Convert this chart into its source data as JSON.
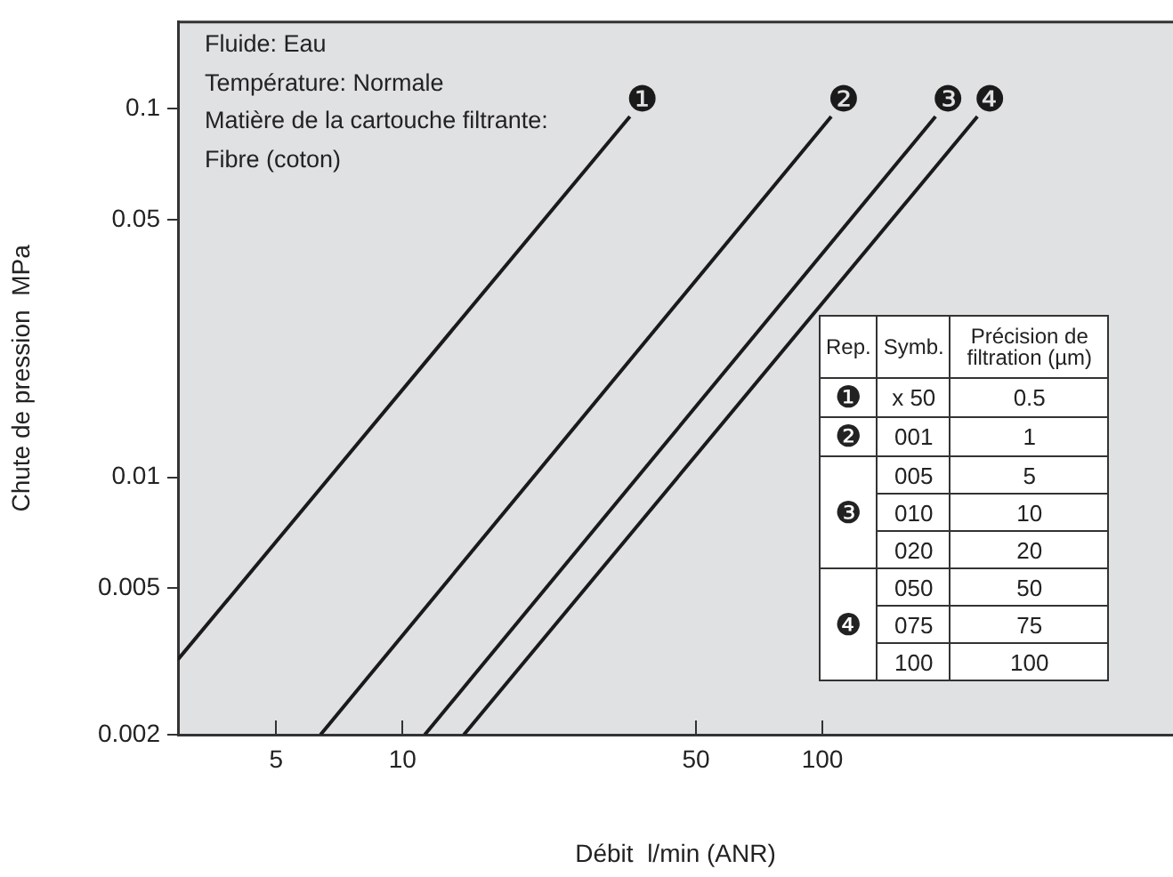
{
  "chart_data": {
    "type": "line",
    "xlabel": "Débit  l/min (ANR)",
    "ylabel": "Chute de pression  MPa",
    "log": "xy",
    "grid": false,
    "legend": false,
    "marker": "none",
    "line_style": "solid",
    "xlim": [
      2.92,
      684
    ],
    "xticks": [
      5,
      10,
      50,
      100
    ],
    "ylim": [
      0.002,
      0.172
    ],
    "yticks": [
      0.002,
      0.005,
      0.01,
      0.05,
      0.1
    ],
    "series": [
      {
        "name": "❶",
        "color": "#1a1a1a",
        "x": [
          2.92,
          34.8
        ],
        "values": [
          0.0032,
          0.0953
        ]
      },
      {
        "name": "❷",
        "color": "#1a1a1a",
        "x": [
          6.38,
          105
        ],
        "values": [
          0.002,
          0.0953
        ]
      },
      {
        "name": "❸",
        "color": "#1a1a1a",
        "x": [
          11.3,
          186
        ],
        "values": [
          0.002,
          0.0953
        ]
      },
      {
        "name": "❹",
        "color": "#1a1a1a",
        "x": [
          14.0,
          234
        ],
        "values": [
          0.002,
          0.0953
        ]
      }
    ],
    "annotations": [
      "Fluide: Eau",
      "Température: Normale",
      "Matière de la cartouche filtrante:",
      "Fibre  (coton)",
      "Rep.",
      "Symb.",
      "Précision de filtration (µm)",
      "x 50",
      "0.5",
      "001",
      "1",
      "005",
      "5",
      "010",
      "10",
      "020",
      "20",
      "050",
      "50",
      "075",
      "75",
      "100",
      "100"
    ]
  }
}
